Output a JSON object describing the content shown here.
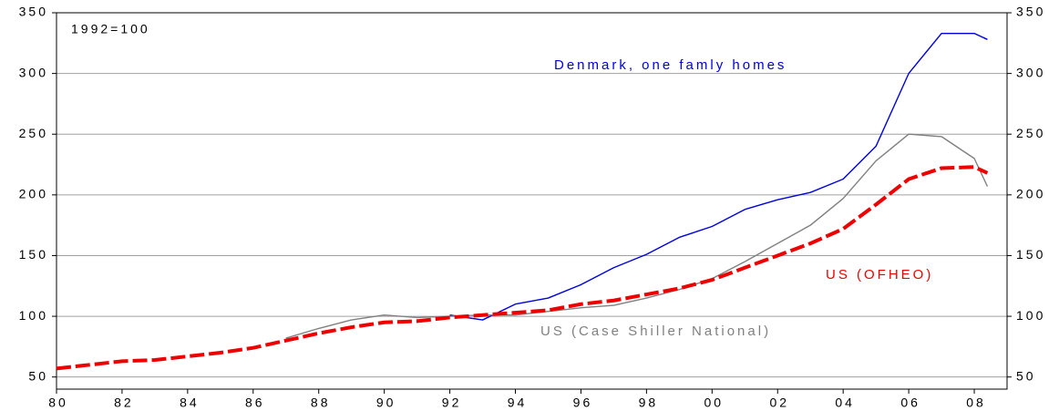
{
  "chart_data": {
    "type": "line",
    "annotation": "1992=100",
    "x": [
      1980,
      1981,
      1982,
      1983,
      1984,
      1985,
      1986,
      1987,
      1988,
      1989,
      1990,
      1991,
      1992,
      1993,
      1994,
      1995,
      1996,
      1997,
      1998,
      1999,
      2000,
      2001,
      2002,
      2003,
      2004,
      2005,
      2006,
      2007,
      2008,
      2008.4
    ],
    "series": [
      {
        "name": "Denmark, one famly homes",
        "color": "#0000dd",
        "style": "solid",
        "values": [
          null,
          null,
          null,
          null,
          null,
          null,
          null,
          null,
          null,
          null,
          null,
          null,
          101,
          97,
          110,
          115,
          126,
          140,
          151,
          165,
          174,
          188,
          196,
          202,
          213,
          240,
          300,
          333,
          333,
          328
        ]
      },
      {
        "name": "US (Case Shiller National)",
        "color": "#808080",
        "style": "solid",
        "values": [
          null,
          null,
          null,
          null,
          null,
          null,
          null,
          82,
          90,
          97,
          101,
          99,
          100,
          101,
          101,
          104,
          107,
          109,
          115,
          122,
          131,
          145,
          160,
          175,
          197,
          228,
          250,
          248,
          230,
          207
        ]
      },
      {
        "name": "US (OFHEO)",
        "color": "#ee0000",
        "style": "dashed",
        "values": [
          57,
          60,
          63,
          64,
          67,
          70,
          74,
          80,
          86,
          91,
          95,
          96,
          99,
          101,
          103,
          105,
          110,
          113,
          118,
          123,
          130,
          140,
          150,
          160,
          172,
          192,
          213,
          222,
          223,
          218
        ]
      }
    ],
    "xlim": [
      1980,
      2009
    ],
    "xticks": [
      {
        "value": 1980,
        "label": "80"
      },
      {
        "value": 1982,
        "label": "82"
      },
      {
        "value": 1984,
        "label": "84"
      },
      {
        "value": 1986,
        "label": "86"
      },
      {
        "value": 1988,
        "label": "88"
      },
      {
        "value": 1990,
        "label": "90"
      },
      {
        "value": 1992,
        "label": "92"
      },
      {
        "value": 1994,
        "label": "94"
      },
      {
        "value": 1996,
        "label": "96"
      },
      {
        "value": 1998,
        "label": "98"
      },
      {
        "value": 2000,
        "label": "00"
      },
      {
        "value": 2002,
        "label": "02"
      },
      {
        "value": 2004,
        "label": "04"
      },
      {
        "value": 2006,
        "label": "06"
      },
      {
        "value": 2008,
        "label": "08"
      }
    ],
    "ylim": [
      40,
      350
    ],
    "yticks": [
      50,
      100,
      150,
      200,
      250,
      300,
      350
    ],
    "grid": true
  }
}
